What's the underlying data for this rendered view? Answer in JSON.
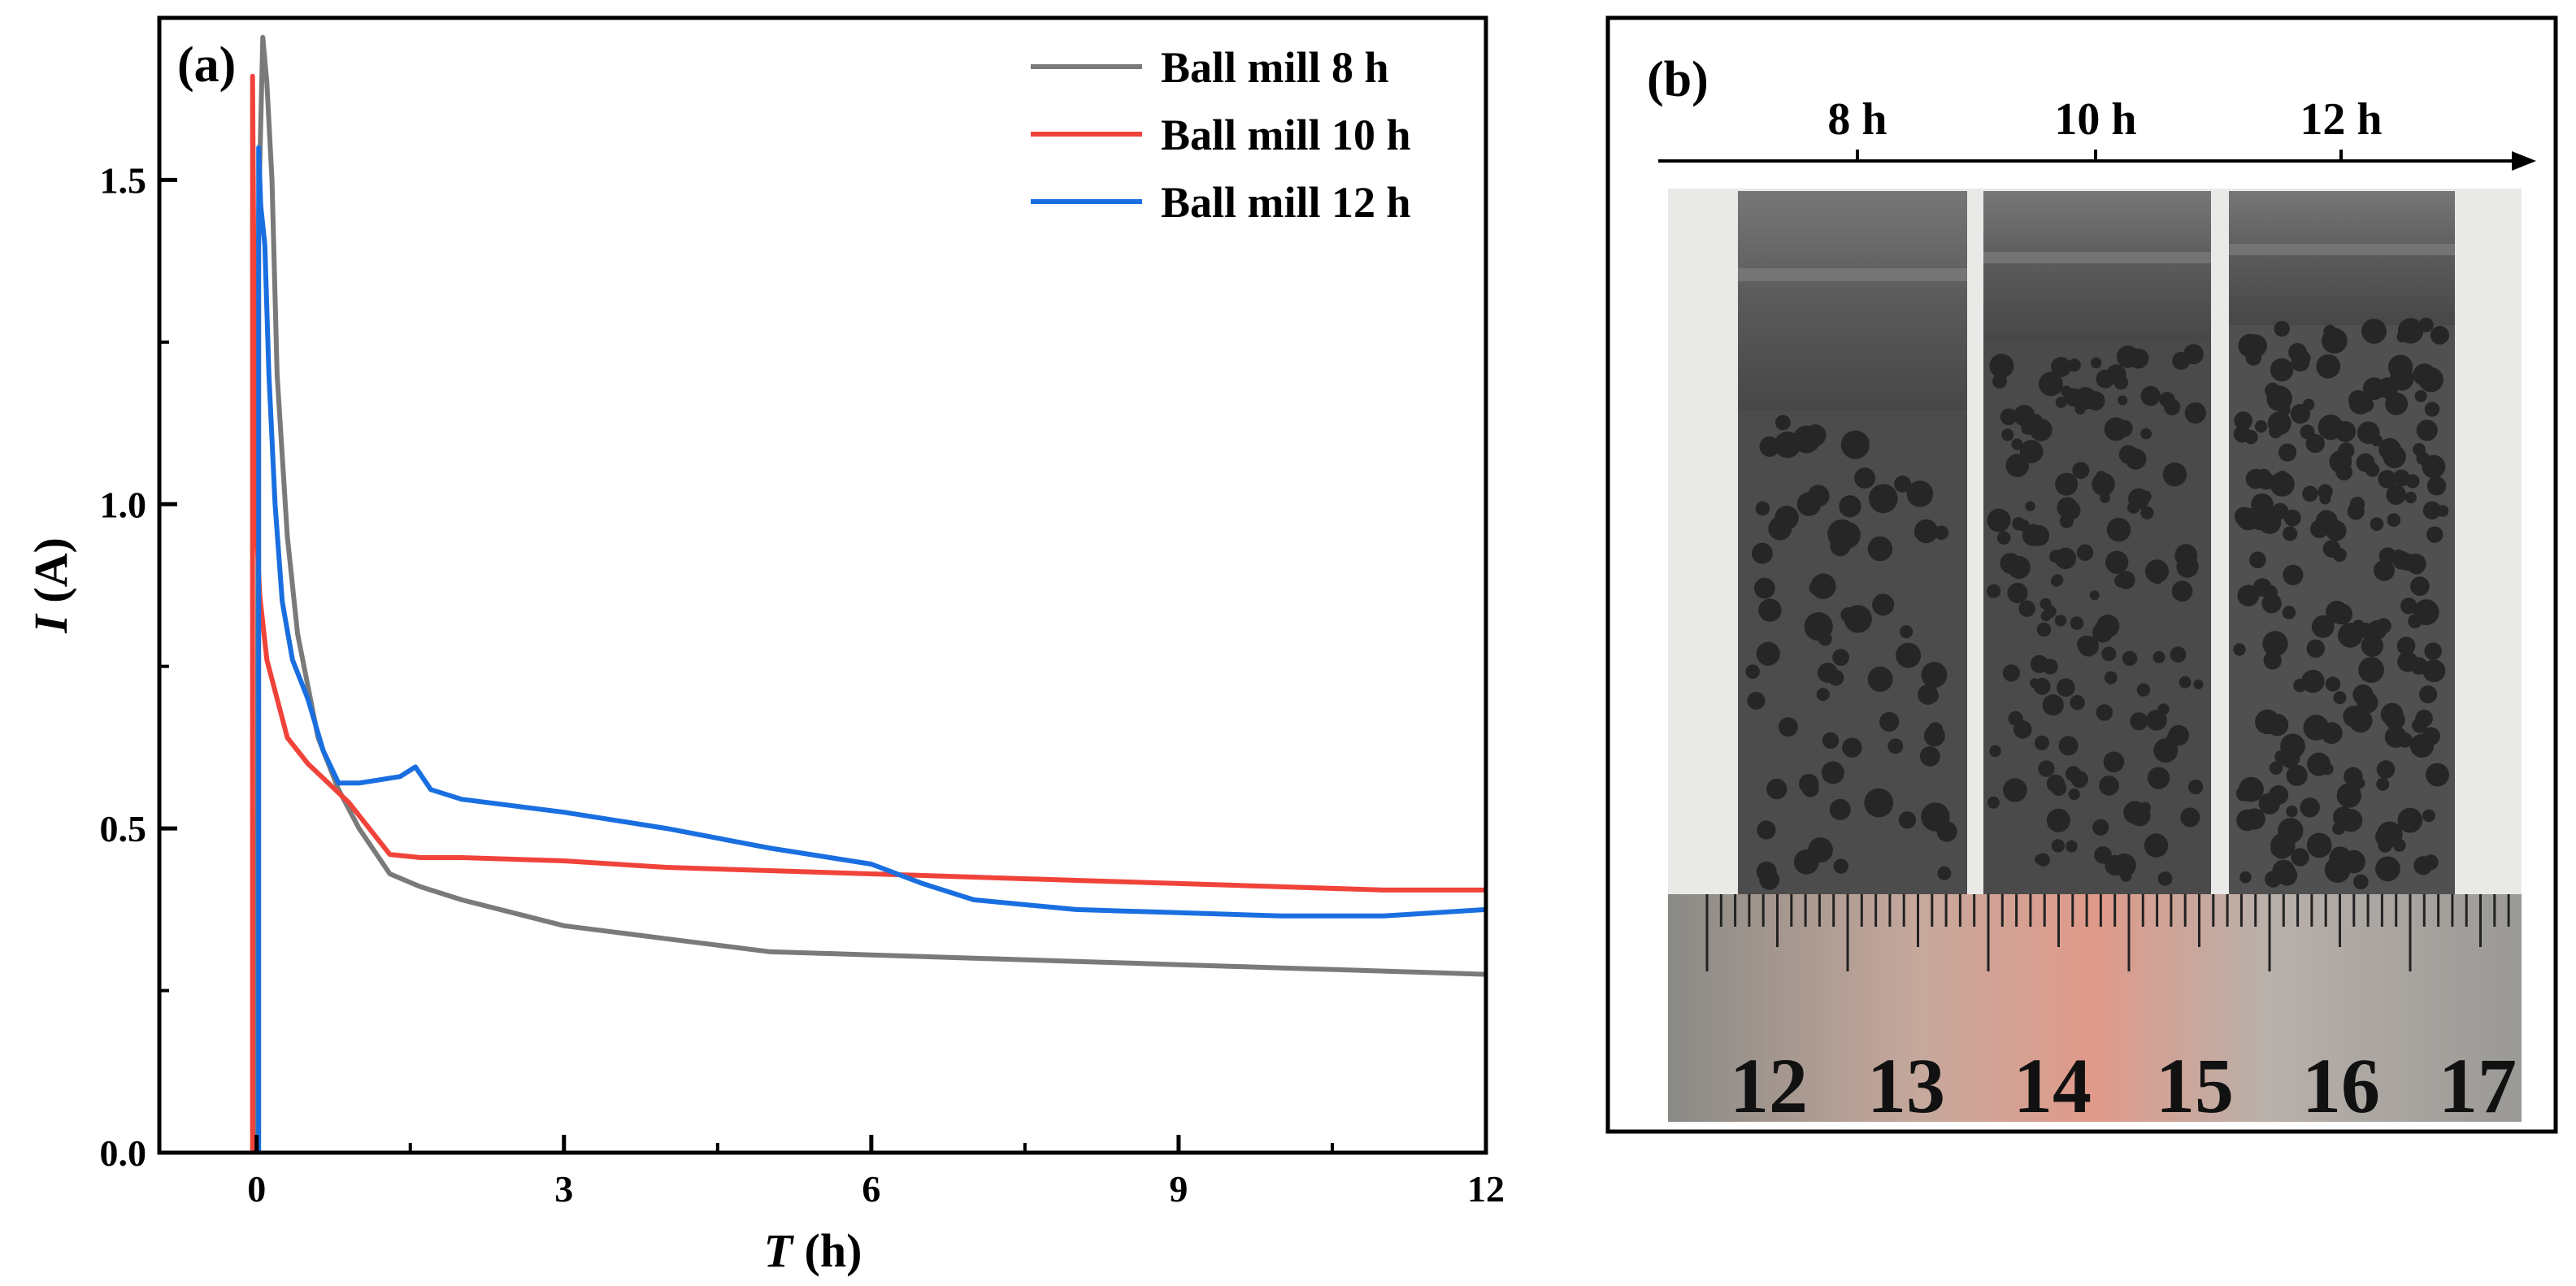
{
  "chart_data": {
    "type": "line",
    "panel_label": "(a)",
    "xlabel_var": "T",
    "xlabel_unit": " (h)",
    "ylabel_var": "I",
    "ylabel_unit": " (A)",
    "xlim": [
      -0.95,
      12
    ],
    "ylim": [
      0,
      1.75
    ],
    "x_ticks": [
      0,
      3,
      6,
      9,
      12
    ],
    "x_tick_labels": [
      "0",
      "3",
      "6",
      "9",
      "12"
    ],
    "y_ticks": [
      0,
      0.5,
      1.0,
      1.5
    ],
    "y_tick_labels": [
      "0.0",
      "0.5",
      "1.0",
      "1.5"
    ],
    "legend_position": "top-right",
    "series": [
      {
        "name": "Ball mill 8 h",
        "color": "#7a7a7a",
        "x": [
          0.0,
          0.02,
          0.06,
          0.1,
          0.15,
          0.2,
          0.3,
          0.4,
          0.5,
          0.6,
          0.8,
          1.0,
          1.3,
          1.6,
          2.0,
          2.5,
          3.0,
          3.5,
          4.0,
          5.0,
          6.0,
          7.0,
          8.0,
          9.0,
          10.0,
          11.0,
          12.0
        ],
        "y": [
          0.0,
          1.45,
          1.72,
          1.65,
          1.5,
          1.2,
          0.95,
          0.8,
          0.72,
          0.64,
          0.56,
          0.5,
          0.43,
          0.41,
          0.39,
          0.37,
          0.35,
          0.34,
          0.33,
          0.31,
          0.305,
          0.3,
          0.295,
          0.29,
          0.285,
          0.28,
          0.275
        ]
      },
      {
        "name": "Ball mill 10 h",
        "color": "#f0433a",
        "x": [
          -0.04,
          -0.04,
          -0.02,
          0.0,
          0.03,
          0.1,
          0.2,
          0.3,
          0.5,
          0.7,
          0.9,
          1.1,
          1.3,
          1.6,
          2.0,
          3.0,
          4.0,
          5.0,
          6.0,
          7.0,
          8.0,
          9.0,
          10.0,
          11.0,
          12.0
        ],
        "y": [
          0.0,
          1.66,
          1.2,
          0.96,
          0.86,
          0.76,
          0.7,
          0.64,
          0.6,
          0.57,
          0.54,
          0.5,
          0.46,
          0.455,
          0.455,
          0.45,
          0.44,
          0.435,
          0.43,
          0.425,
          0.42,
          0.415,
          0.41,
          0.405,
          0.405
        ]
      },
      {
        "name": "Ball mill 12 h",
        "color": "#1a6fe0",
        "x": [
          0.02,
          0.02,
          0.04,
          0.08,
          0.12,
          0.18,
          0.25,
          0.35,
          0.5,
          0.65,
          0.8,
          1.0,
          1.2,
          1.4,
          1.55,
          1.7,
          2.0,
          2.5,
          3.0,
          4.0,
          5.0,
          6.0,
          6.5,
          7.0,
          8.0,
          9.0,
          10.0,
          11.0,
          12.0
        ],
        "y": [
          0.0,
          1.55,
          1.46,
          1.4,
          1.2,
          1.0,
          0.85,
          0.76,
          0.7,
          0.62,
          0.57,
          0.57,
          0.575,
          0.58,
          0.595,
          0.56,
          0.545,
          0.535,
          0.525,
          0.5,
          0.47,
          0.445,
          0.415,
          0.39,
          0.375,
          0.37,
          0.365,
          0.365,
          0.375
        ]
      }
    ]
  },
  "photo_panel": {
    "panel_label": "(b)",
    "sample_labels": [
      "8 h",
      "10 h",
      "12 h"
    ],
    "ruler_numbers": [
      "12",
      "13",
      "14",
      "15",
      "16",
      "17"
    ]
  }
}
